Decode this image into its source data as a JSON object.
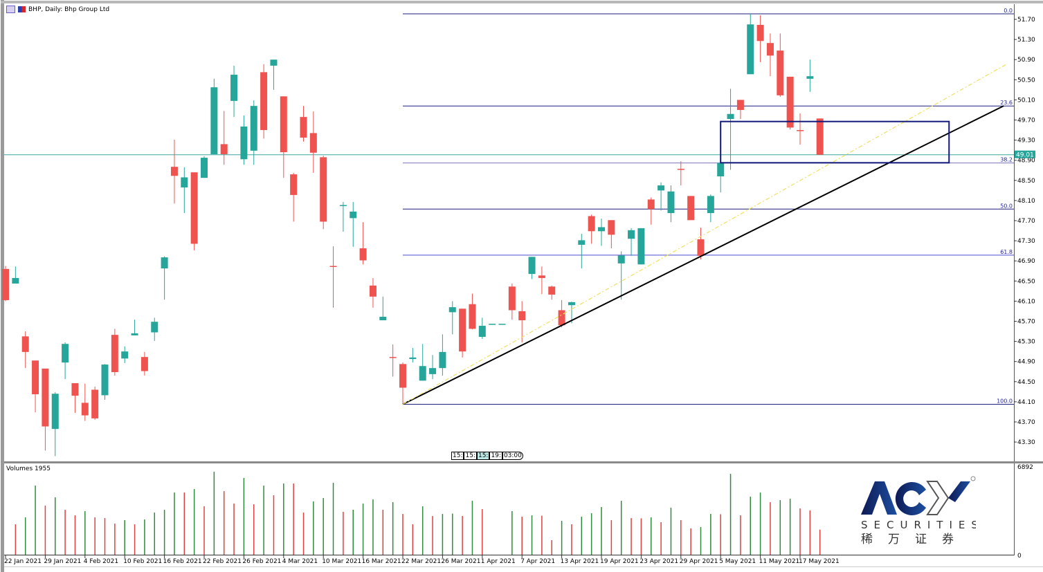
{
  "window": {
    "title": "BHP, Daily:  Bhp Group Ltd",
    "volume_title": "Volumes 1955",
    "time_labels": [
      "15:",
      "15:",
      "15:",
      "19:",
      "03:00"
    ]
  },
  "colors": {
    "bull": "#26a69a",
    "bear": "#ef5350",
    "vol_up": "#2e8b3a",
    "vol_down": "#e0403f",
    "bid_line": "#3aa6a0",
    "fib": "#1a1f7a",
    "trend": "#000000",
    "trend_dashed": "#f0e060",
    "rect": "#10187a"
  },
  "logo": {
    "brand": "ACY",
    "sub": "SECURITIES",
    "cn": "稀万证券"
  },
  "chart_data": {
    "type": "candlestick",
    "symbol": "BHP",
    "timeframe": "Daily",
    "name": "Bhp Group Ltd",
    "ylim": [
      43.0,
      51.85
    ],
    "y_ticks": [
      "51.70",
      "51.30",
      "50.90",
      "50.50",
      "50.10",
      "49.70",
      "49.30",
      "48.90",
      "48.50",
      "48.10",
      "47.70",
      "47.30",
      "46.90",
      "46.50",
      "46.10",
      "45.70",
      "45.30",
      "44.90",
      "44.50",
      "44.10",
      "43.70",
      "43.30"
    ],
    "x_ticks": [
      {
        "index": 0,
        "label": "22 Jan 2021"
      },
      {
        "index": 4,
        "label": "29 Jan 2021"
      },
      {
        "index": 8,
        "label": "4 Feb 2021"
      },
      {
        "index": 12,
        "label": "10 Feb 2021"
      },
      {
        "index": 16,
        "label": "16 Feb 2021"
      },
      {
        "index": 20,
        "label": "22 Feb 2021"
      },
      {
        "index": 24,
        "label": "26 Feb 2021"
      },
      {
        "index": 28,
        "label": "4 Mar 2021"
      },
      {
        "index": 32,
        "label": "10 Mar 2021"
      },
      {
        "index": 36,
        "label": "16 Mar 2021"
      },
      {
        "index": 40,
        "label": "22 Mar 2021"
      },
      {
        "index": 44,
        "label": "26 Mar 2021"
      },
      {
        "index": 48,
        "label": "1 Apr 2021"
      },
      {
        "index": 52,
        "label": "7 Apr 2021"
      },
      {
        "index": 56,
        "label": "13 Apr 2021"
      },
      {
        "index": 60,
        "label": "19 Apr 2021"
      },
      {
        "index": 64,
        "label": "23 Apr 2021"
      },
      {
        "index": 68,
        "label": "29 Apr 2021"
      },
      {
        "index": 72,
        "label": "5 May 2021"
      },
      {
        "index": 76,
        "label": "11 May 2021"
      },
      {
        "index": 80,
        "label": "17 May 2021"
      }
    ],
    "ohlc": [
      [
        46.74,
        46.8,
        46.1,
        46.12
      ],
      [
        46.45,
        46.79,
        46.45,
        46.56
      ],
      [
        45.4,
        45.5,
        44.77,
        45.09
      ],
      [
        44.92,
        44.92,
        43.89,
        44.25
      ],
      [
        44.76,
        44.76,
        43.13,
        43.61
      ],
      [
        43.56,
        44.29,
        43.02,
        44.26
      ],
      [
        44.88,
        45.28,
        44.55,
        45.25
      ],
      [
        44.47,
        44.47,
        43.88,
        44.22
      ],
      [
        44.08,
        44.46,
        43.72,
        43.83
      ],
      [
        44.34,
        44.4,
        43.74,
        43.77
      ],
      [
        44.23,
        44.85,
        44.14,
        44.84
      ],
      [
        45.43,
        45.55,
        44.62,
        44.69
      ],
      [
        44.96,
        45.2,
        44.87,
        45.1
      ],
      [
        45.42,
        45.73,
        45.42,
        45.46
      ],
      [
        44.99,
        45.09,
        44.62,
        44.71
      ],
      [
        45.48,
        45.77,
        45.31,
        45.69
      ],
      [
        46.75,
        46.99,
        46.13,
        46.97
      ],
      [
        48.77,
        49.31,
        48.04,
        48.59
      ],
      [
        48.36,
        48.76,
        47.85,
        48.56
      ],
      [
        48.66,
        48.66,
        47.11,
        47.24
      ],
      [
        48.55,
        48.98,
        48.55,
        48.95
      ],
      [
        49.02,
        50.52,
        49.02,
        50.35
      ],
      [
        49.22,
        49.88,
        48.81,
        49.02
      ],
      [
        50.08,
        50.78,
        49.76,
        50.6
      ],
      [
        48.92,
        49.79,
        48.81,
        49.57
      ],
      [
        49.09,
        50.09,
        48.81,
        49.98
      ],
      [
        50.65,
        50.81,
        49.33,
        49.5
      ],
      [
        50.78,
        50.9,
        50.3,
        50.9
      ],
      [
        50.17,
        50.17,
        48.55,
        49.06
      ],
      [
        48.62,
        48.65,
        47.68,
        48.21
      ],
      [
        49.76,
        49.98,
        49.27,
        49.35
      ],
      [
        49.44,
        49.87,
        48.65,
        49.05
      ],
      [
        48.96,
        48.99,
        47.53,
        47.68
      ],
      [
        46.8,
        47.19,
        45.97,
        46.79
      ],
      [
        47.99,
        48.07,
        47.48,
        48.01
      ],
      [
        47.75,
        48.07,
        47.18,
        47.88
      ],
      [
        47.15,
        47.67,
        46.83,
        46.91
      ],
      [
        46.41,
        46.56,
        45.97,
        46.19
      ],
      [
        45.72,
        46.19,
        45.72,
        45.79
      ],
      [
        44.99,
        45.24,
        44.6,
        44.98
      ],
      [
        44.85,
        44.88,
        44.05,
        44.38
      ],
      [
        44.95,
        45.17,
        44.88,
        44.98
      ],
      [
        44.52,
        45.25,
        44.52,
        44.81
      ],
      [
        44.65,
        45.03,
        44.55,
        44.77
      ],
      [
        44.77,
        45.44,
        44.62,
        45.09
      ],
      [
        45.88,
        46.1,
        45.44,
        45.98
      ],
      [
        45.95,
        45.95,
        44.98,
        45.1
      ],
      [
        46.04,
        46.25,
        45.54,
        45.55
      ],
      [
        45.39,
        45.77,
        45.35,
        45.61
      ],
      [
        45.65,
        45.65,
        45.65,
        45.65
      ],
      [
        45.65,
        45.65,
        45.65,
        45.65
      ],
      [
        46.39,
        46.45,
        45.73,
        45.92
      ],
      [
        45.9,
        46.1,
        45.28,
        45.72
      ],
      [
        46.64,
        46.98,
        46.54,
        46.98
      ],
      [
        46.61,
        46.79,
        46.24,
        46.56
      ],
      [
        46.39,
        46.41,
        46.13,
        46.23
      ],
      [
        45.92,
        46.12,
        45.58,
        45.62
      ],
      [
        46.02,
        46.09,
        45.66,
        46.08
      ],
      [
        47.22,
        47.44,
        46.75,
        47.31
      ],
      [
        47.79,
        47.82,
        47.24,
        47.49
      ],
      [
        47.49,
        47.74,
        47.2,
        47.57
      ],
      [
        47.71,
        47.71,
        47.15,
        47.42
      ],
      [
        46.85,
        47.09,
        46.13,
        47.01
      ],
      [
        47.34,
        47.55,
        47.0,
        47.51
      ],
      [
        46.83,
        47.55,
        46.83,
        47.55
      ],
      [
        48.12,
        48.16,
        47.62,
        47.93
      ],
      [
        48.3,
        48.46,
        47.9,
        48.4
      ],
      [
        47.85,
        48.4,
        47.67,
        48.28
      ],
      [
        48.73,
        48.88,
        48.4,
        48.72
      ],
      [
        48.19,
        48.19,
        47.71,
        47.71
      ],
      [
        47.33,
        47.56,
        46.93,
        47.0
      ],
      [
        47.85,
        48.22,
        47.67,
        48.19
      ],
      [
        48.58,
        48.89,
        48.26,
        48.85
      ],
      [
        49.72,
        50.32,
        48.71,
        49.82
      ],
      [
        50.1,
        50.1,
        49.72,
        49.9
      ],
      [
        50.61,
        51.81,
        50.61,
        51.6
      ],
      [
        51.59,
        51.78,
        50.85,
        51.27
      ],
      [
        51.23,
        51.42,
        50.57,
        50.98
      ],
      [
        51.08,
        51.42,
        50.16,
        50.19
      ],
      [
        50.56,
        50.56,
        49.51,
        49.55
      ],
      [
        49.5,
        49.83,
        49.21,
        49.49
      ],
      [
        50.52,
        50.9,
        50.26,
        50.57
      ],
      [
        49.73,
        49.73,
        49.01,
        49.01
      ]
    ],
    "last_price": "49.01",
    "last_price_value": 49.01,
    "volume": {
      "label": "Volumes",
      "current": 1955,
      "max_label": "6892",
      "min_label": "0",
      "ylim": [
        0,
        6892
      ],
      "values": [
        null,
        2367,
        2905,
        5380,
        3820,
        4465,
        3497,
        3067,
        3389,
        2905,
        2851,
        2421,
        2690,
        2367,
        2744,
        3282,
        3497,
        4842,
        4842,
        5111,
        3766,
        6456,
        4950,
        3981,
        5972,
        3927,
        5380,
        4627,
        5541,
        5541,
        3282,
        4143,
        4412,
        5595,
        3336,
        3497,
        3981,
        4304,
        3497,
        4089,
        3174,
        2367,
        3766,
        3013,
        3174,
        3200,
        3013,
        4196,
        3551,
        0,
        0,
        3389,
        2959,
        3067,
        3040,
        1130,
        2636,
        2367,
        2959,
        3228,
        3712,
        2690,
        4196,
        2851,
        2830,
        2905,
        2529,
        3658,
        2690,
        2044,
        2152,
        3174,
        3150,
        6295,
        3067,
        4519,
        4842,
        4089,
        4250,
        4358,
        3605,
        3443,
        1955
      ]
    },
    "fibonacci": {
      "from": {
        "index": 40,
        "price": 44.05
      },
      "to_high": 51.81,
      "levels": [
        {
          "label": "0.0",
          "ratio": 0.0
        },
        {
          "label": "23.6",
          "ratio": 0.236
        },
        {
          "label": "38.2",
          "ratio": 0.382
        },
        {
          "label": "50.0",
          "ratio": 0.5
        },
        {
          "label": "61.8",
          "ratio": 0.618
        },
        {
          "label": "100.0",
          "ratio": 1.0
        }
      ]
    },
    "trendlines": [
      {
        "style": "solid",
        "start": {
          "index": 40,
          "price": 44.05
        },
        "end": {
          "index": 100.5,
          "price": 49.98
        }
      },
      {
        "style": "dashed",
        "start": {
          "index": 40,
          "price": 44.05
        },
        "end": {
          "index": 100.8,
          "price": 50.81
        }
      }
    ],
    "rectangle": {
      "start_index": 72,
      "end_index": 95,
      "top": 49.67,
      "bottom": 48.85
    }
  }
}
